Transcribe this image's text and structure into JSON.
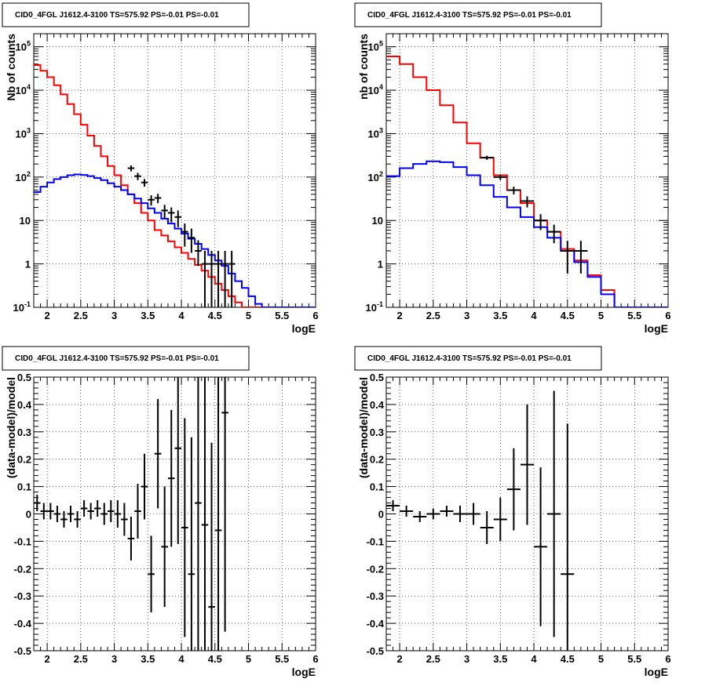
{
  "panel_title": "CID0_4FGL J1612.4-3100 TS=575.92 PS=-0.01 PS=-0.01",
  "colors": {
    "total_model": "#ff0000",
    "source_model": "#0000ff",
    "data": "#000000"
  },
  "chart_data": [
    {
      "type": "line",
      "title": "CID0_4FGL J1612.4-3100 TS=575.92 PS=-0.01 PS=-0.01",
      "xlabel": "logE",
      "ylabel": "Nb of counts",
      "y_scale": "log",
      "xlim": [
        1.8,
        6
      ],
      "ylim": [
        0.1,
        200000
      ],
      "grid": true,
      "x_tick_labels": [
        "2",
        "2.5",
        "3",
        "3.5",
        "4",
        "4.5",
        "5",
        "5.5",
        "6"
      ],
      "y_tick_labels": [
        "10^-1",
        "1",
        "10",
        "10^2",
        "10^3",
        "10^4",
        "10^5"
      ],
      "series": [
        {
          "name": "total model",
          "style": "step",
          "bins": [
            1.8,
            1.9,
            2.0,
            2.1,
            2.2,
            2.3,
            2.4,
            2.5,
            2.6,
            2.7,
            2.8,
            2.9,
            3.0,
            3.1,
            3.2,
            3.3,
            3.4,
            3.5,
            3.6,
            3.7,
            3.8,
            3.9,
            4.0,
            4.1,
            4.2,
            4.3,
            4.4,
            4.5,
            4.6,
            4.7,
            4.8,
            4.9,
            5.0,
            5.1,
            5.2,
            5.3,
            5.4,
            5.5,
            5.6,
            5.7,
            5.8,
            5.9,
            6.0
          ],
          "values": [
            38000,
            28000,
            20000,
            13000,
            8000,
            4800,
            2800,
            1600,
            900,
            520,
            300,
            180,
            110,
            65,
            40,
            25,
            15,
            10,
            6,
            4.5,
            3.3,
            2.4,
            1.8,
            1.3,
            0.95,
            0.7,
            0.5,
            0.35,
            0.25,
            0.18,
            0.13,
            0.1,
            0.1,
            0.1,
            0.1,
            0.1,
            0.1,
            0.1,
            0.1,
            0.1,
            0.1,
            0.1
          ]
        },
        {
          "name": "source model",
          "style": "step",
          "bins": [
            1.8,
            1.9,
            2.0,
            2.1,
            2.2,
            2.3,
            2.4,
            2.5,
            2.6,
            2.7,
            2.8,
            2.9,
            3.0,
            3.1,
            3.2,
            3.3,
            3.4,
            3.5,
            3.6,
            3.7,
            3.8,
            3.9,
            4.0,
            4.1,
            4.2,
            4.3,
            4.4,
            4.5,
            4.6,
            4.7,
            4.8,
            4.9,
            5.0,
            5.1,
            5.2,
            5.3,
            5.4,
            5.5,
            5.6,
            5.7,
            5.8,
            5.9,
            6.0
          ],
          "values": [
            45,
            60,
            75,
            90,
            100,
            110,
            115,
            112,
            105,
            95,
            85,
            72,
            60,
            50,
            40,
            32,
            25,
            19,
            15,
            11,
            8.5,
            6.5,
            5,
            3.8,
            2.9,
            2.2,
            1.6,
            1.2,
            0.9,
            0.6,
            0.4,
            0.28,
            0.18,
            0.12,
            0.1,
            0.1,
            0.1,
            0.1,
            0.1,
            0.1,
            0.1,
            0.1
          ]
        },
        {
          "name": "data",
          "style": "points",
          "x": [
            3.25,
            3.35,
            3.45,
            3.55,
            3.65,
            3.75,
            3.85,
            3.95,
            4.05,
            4.15,
            4.25,
            4.35,
            4.45,
            4.55,
            4.65,
            4.75
          ],
          "y": [
            160,
            105,
            75,
            30,
            33,
            17,
            15,
            12,
            5.5,
            4,
            2,
            1,
            1,
            1,
            1,
            1
          ],
          "yerr_low": [
            135,
            85,
            60,
            22,
            25,
            11,
            9,
            7,
            2.5,
            1.8,
            0.9,
            0.1,
            0.1,
            0.1,
            0.1,
            0.1
          ],
          "yerr_high": [
            185,
            125,
            90,
            38,
            41,
            23,
            20,
            17,
            8.5,
            6.5,
            3.5,
            2,
            2,
            2,
            2,
            2
          ]
        }
      ]
    },
    {
      "type": "line",
      "title": "CID0_4FGL J1612.4-3100 TS=575.92 PS=-0.01 PS=-0.01",
      "xlabel": "logE",
      "ylabel": "nb of counts",
      "y_scale": "log",
      "xlim": [
        1.8,
        6
      ],
      "ylim": [
        0.1,
        200000
      ],
      "grid": true,
      "x_tick_labels": [
        "2",
        "2.5",
        "3",
        "3.5",
        "4",
        "4.5",
        "5",
        "5.5",
        "6"
      ],
      "y_tick_labels": [
        "10^-1",
        "1",
        "10",
        "10^2",
        "10^3",
        "10^4",
        "10^5"
      ],
      "series": [
        {
          "name": "total model",
          "style": "step",
          "bins": [
            1.8,
            2.0,
            2.2,
            2.4,
            2.6,
            2.8,
            3.0,
            3.2,
            3.4,
            3.6,
            3.8,
            4.0,
            4.2,
            4.4,
            4.6,
            4.8,
            5.0,
            5.2,
            5.4,
            5.6,
            5.8,
            6.0
          ],
          "values": [
            60000,
            40000,
            20000,
            10000,
            4500,
            1800,
            600,
            280,
            110,
            50,
            25,
            10,
            5.5,
            2.2,
            1.2,
            0.55,
            0.25,
            0.1,
            0.1,
            0.1,
            0.1
          ]
        },
        {
          "name": "source model",
          "style": "step",
          "bins": [
            1.8,
            2.0,
            2.2,
            2.4,
            2.6,
            2.8,
            3.0,
            3.2,
            3.4,
            3.6,
            3.8,
            4.0,
            4.2,
            4.4,
            4.6,
            4.8,
            5.0,
            5.2,
            5.4,
            5.6,
            5.8,
            6.0
          ],
          "values": [
            105,
            160,
            200,
            230,
            220,
            170,
            110,
            65,
            35,
            20,
            12,
            7,
            4,
            2,
            1.1,
            0.5,
            0.2,
            0.1,
            0.1,
            0.1,
            0.1
          ]
        },
        {
          "name": "data",
          "style": "points",
          "x": [
            3.3,
            3.5,
            3.7,
            3.9,
            4.1,
            4.3,
            4.5,
            4.7
          ],
          "y": [
            280,
            100,
            50,
            28,
            10,
            5.5,
            2,
            2
          ],
          "yerr_low": [
            250,
            85,
            40,
            20,
            6,
            3,
            0.6,
            0.6
          ],
          "yerr_high": [
            310,
            115,
            60,
            36,
            14,
            8,
            3.4,
            3.4
          ]
        }
      ]
    },
    {
      "type": "scatter",
      "title": "CID0_4FGL J1612.4-3100 TS=575.92 PS=-0.01 PS=-0.01",
      "xlabel": "logE",
      "ylabel": "(data-model)/model",
      "xlim": [
        1.8,
        6
      ],
      "ylim": [
        -0.5,
        0.5
      ],
      "grid": true,
      "x_tick_labels": [
        "2",
        "2.5",
        "3",
        "3.5",
        "4",
        "4.5",
        "5",
        "5.5",
        "6"
      ],
      "y_tick_labels": [
        "-0.5",
        "-0.4",
        "-0.3",
        "-0.2",
        "-0.1",
        "0",
        "0.1",
        "0.2",
        "0.3",
        "0.4",
        "0.5"
      ],
      "series": [
        {
          "name": "residuals",
          "x": [
            1.85,
            1.95,
            2.05,
            2.15,
            2.25,
            2.35,
            2.45,
            2.55,
            2.65,
            2.75,
            2.85,
            2.95,
            3.05,
            3.15,
            3.25,
            3.35,
            3.45,
            3.55,
            3.65,
            3.75,
            3.85,
            3.95,
            4.05,
            4.15,
            4.25,
            4.35,
            4.45,
            4.55,
            4.65
          ],
          "y": [
            0.04,
            0.01,
            0.01,
            0.0,
            -0.02,
            0.0,
            -0.02,
            0.02,
            0.01,
            0.02,
            0.0,
            0.01,
            0.0,
            -0.02,
            -0.09,
            0.01,
            0.1,
            -0.22,
            0.22,
            -0.12,
            0.13,
            0.24,
            -0.05,
            -0.22,
            0.04,
            -0.04,
            -0.34,
            -0.06,
            0.37
          ],
          "yerr": [
            0.03,
            0.03,
            0.03,
            0.03,
            0.03,
            0.03,
            0.03,
            0.03,
            0.03,
            0.03,
            0.04,
            0.04,
            0.05,
            0.06,
            0.08,
            0.1,
            0.12,
            0.14,
            0.2,
            0.22,
            0.25,
            0.35,
            0.4,
            0.5,
            0.6,
            0.6,
            0.6,
            0.6,
            0.8
          ]
        }
      ]
    },
    {
      "type": "scatter",
      "title": "CID0_4FGL J1612.4-3100 TS=575.92 PS=-0.01 PS=-0.01",
      "xlabel": "logE",
      "ylabel": "(data-model)/model",
      "xlim": [
        1.8,
        6
      ],
      "ylim": [
        -0.5,
        0.5
      ],
      "grid": true,
      "x_tick_labels": [
        "2",
        "2.5",
        "3",
        "3.5",
        "4",
        "4.5",
        "5",
        "5.5",
        "6"
      ],
      "y_tick_labels": [
        "-0.5",
        "-0.4",
        "-0.3",
        "-0.2",
        "-0.1",
        "0",
        "0.1",
        "0.2",
        "0.3",
        "0.4",
        "0.5"
      ],
      "series": [
        {
          "name": "residuals",
          "x": [
            1.9,
            2.1,
            2.3,
            2.5,
            2.7,
            2.9,
            3.1,
            3.3,
            3.5,
            3.7,
            3.9,
            4.1,
            4.3,
            4.5
          ],
          "y": [
            0.03,
            0.01,
            -0.01,
            0.0,
            0.01,
            0.0,
            0.0,
            -0.05,
            -0.02,
            0.09,
            0.18,
            -0.12,
            0.0,
            -0.22
          ],
          "yerr": [
            0.02,
            0.02,
            0.02,
            0.02,
            0.02,
            0.03,
            0.04,
            0.06,
            0.08,
            0.15,
            0.22,
            0.29,
            0.45,
            0.55
          ]
        }
      ]
    }
  ]
}
